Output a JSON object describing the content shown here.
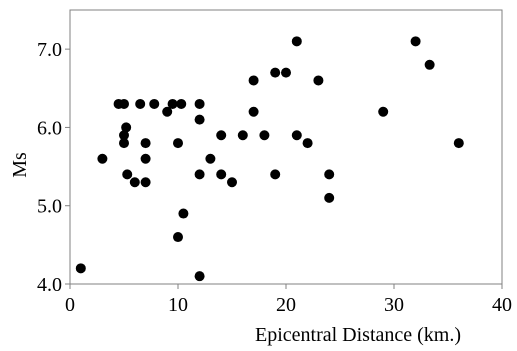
{
  "chart_data": {
    "type": "scatter",
    "title": "",
    "xlabel": "Epicentral Distance (km.)",
    "ylabel": "Ms",
    "xlim": [
      0,
      40
    ],
    "ylim": [
      4.0,
      7.5
    ],
    "x_ticks": [
      "0",
      "10",
      "20",
      "30",
      "40"
    ],
    "x_tick_values": [
      0,
      10,
      20,
      30,
      40
    ],
    "y_ticks": [
      "4.0",
      "5.0",
      "6.0",
      "7.0"
    ],
    "y_tick_values": [
      4.0,
      5.0,
      6.0,
      7.0
    ],
    "grid": false,
    "legend": "none",
    "marker_color": "#000000",
    "series": [
      {
        "points": [
          [
            1,
            4.2
          ],
          [
            3,
            5.6
          ],
          [
            4.5,
            6.3
          ],
          [
            5,
            6.3
          ],
          [
            5,
            5.9
          ],
          [
            5,
            5.8
          ],
          [
            5.2,
            6.0
          ],
          [
            5.3,
            5.4
          ],
          [
            6,
            5.3
          ],
          [
            6.5,
            6.3
          ],
          [
            7,
            5.8
          ],
          [
            7,
            5.6
          ],
          [
            7,
            5.3
          ],
          [
            7.8,
            6.3
          ],
          [
            9,
            6.2
          ],
          [
            9.5,
            6.3
          ],
          [
            10,
            5.8
          ],
          [
            10,
            4.6
          ],
          [
            10.3,
            6.3
          ],
          [
            10.5,
            4.9
          ],
          [
            12,
            6.3
          ],
          [
            12,
            6.1
          ],
          [
            12,
            5.4
          ],
          [
            12,
            4.1
          ],
          [
            13,
            5.6
          ],
          [
            14,
            5.9
          ],
          [
            14,
            5.4
          ],
          [
            15,
            5.3
          ],
          [
            16,
            5.9
          ],
          [
            17,
            6.6
          ],
          [
            17,
            6.2
          ],
          [
            18,
            5.9
          ],
          [
            19,
            6.7
          ],
          [
            19,
            5.4
          ],
          [
            20,
            6.7
          ],
          [
            21,
            7.1
          ],
          [
            21,
            5.9
          ],
          [
            22,
            5.8
          ],
          [
            23,
            6.6
          ],
          [
            24,
            5.4
          ],
          [
            24,
            5.1
          ],
          [
            29,
            6.2
          ],
          [
            32,
            7.1
          ],
          [
            33.3,
            6.8
          ],
          [
            36,
            5.8
          ]
        ]
      }
    ]
  }
}
